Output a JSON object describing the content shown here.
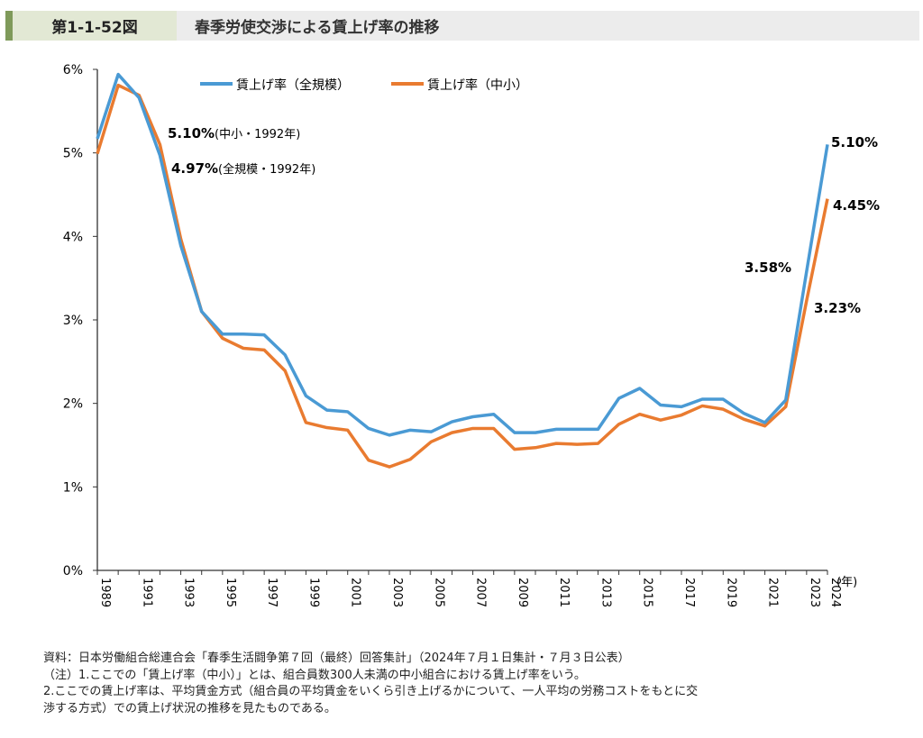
{
  "header": {
    "figure_number": "第1-1-52図",
    "title": "春季労使交渉による賃上げ率の推移"
  },
  "chart_data": {
    "type": "line",
    "title": "",
    "xlabel": "(年)",
    "ylabel": "",
    "x": [
      1989,
      1990,
      1991,
      1992,
      1993,
      1994,
      1995,
      1996,
      1997,
      1998,
      1999,
      2000,
      2001,
      2002,
      2003,
      2004,
      2005,
      2006,
      2007,
      2008,
      2009,
      2010,
      2011,
      2012,
      2013,
      2014,
      2015,
      2016,
      2017,
      2018,
      2019,
      2020,
      2021,
      2022,
      2023,
      2024
    ],
    "xticks": [
      "1989",
      "1991",
      "1993",
      "1995",
      "1997",
      "1999",
      "2001",
      "2003",
      "2005",
      "2007",
      "2009",
      "2011",
      "2013",
      "2015",
      "2017",
      "2019",
      "2021",
      "2023",
      "2024"
    ],
    "xlim": [
      1989,
      2024
    ],
    "ylim": [
      0,
      6
    ],
    "yticks": [
      "0%",
      "1%",
      "2%",
      "3%",
      "4%",
      "5%",
      "6%"
    ],
    "grid": false,
    "legend_position": "top",
    "series": [
      {
        "name": "賃上げ率（全規模）",
        "color": "#4a9ad4",
        "values": [
          5.17,
          5.94,
          5.66,
          4.97,
          3.89,
          3.1,
          2.83,
          2.83,
          2.82,
          2.58,
          2.09,
          1.92,
          1.9,
          1.7,
          1.62,
          1.68,
          1.66,
          1.78,
          1.84,
          1.87,
          1.65,
          1.65,
          1.69,
          1.69,
          1.69,
          2.06,
          2.18,
          1.98,
          1.96,
          2.05,
          2.05,
          1.88,
          1.77,
          2.04,
          3.58,
          5.1
        ]
      },
      {
        "name": "賃上げ率（中小）",
        "color": "#e97b30",
        "values": [
          4.99,
          5.81,
          5.69,
          5.1,
          3.97,
          3.1,
          2.78,
          2.66,
          2.64,
          2.39,
          1.77,
          1.71,
          1.68,
          1.32,
          1.24,
          1.33,
          1.54,
          1.65,
          1.7,
          1.7,
          1.45,
          1.47,
          1.52,
          1.51,
          1.52,
          1.75,
          1.87,
          1.8,
          1.86,
          1.97,
          1.93,
          1.81,
          1.73,
          1.96,
          3.23,
          4.45
        ]
      }
    ],
    "annotations": [
      {
        "value": "5.10%",
        "note": "(中小・1992年)"
      },
      {
        "value": "4.97%",
        "note": "(全規模・1992年)"
      },
      {
        "value": "5.10%",
        "note": ""
      },
      {
        "value": "4.45%",
        "note": ""
      },
      {
        "value": "3.58%",
        "note": ""
      },
      {
        "value": "3.23%",
        "note": ""
      }
    ]
  },
  "notes": [
    "資料：日本労働組合総連合会「春季生活闘争第７回（最終）回答集計」（2024年７月１日集計・７月３日公表）",
    "（注）1.ここでの「賃上げ率（中小）」とは、組合員数300人未満の中小組合における賃上げ率をいう。",
    "2.ここでの賃上げ率は、平均賃金方式（組合員の平均賃金をいくら引き上げるかについて、一人平均の労務コストをもとに交",
    "渉する方式）での賃上げ状況の推移を見たものである。"
  ]
}
